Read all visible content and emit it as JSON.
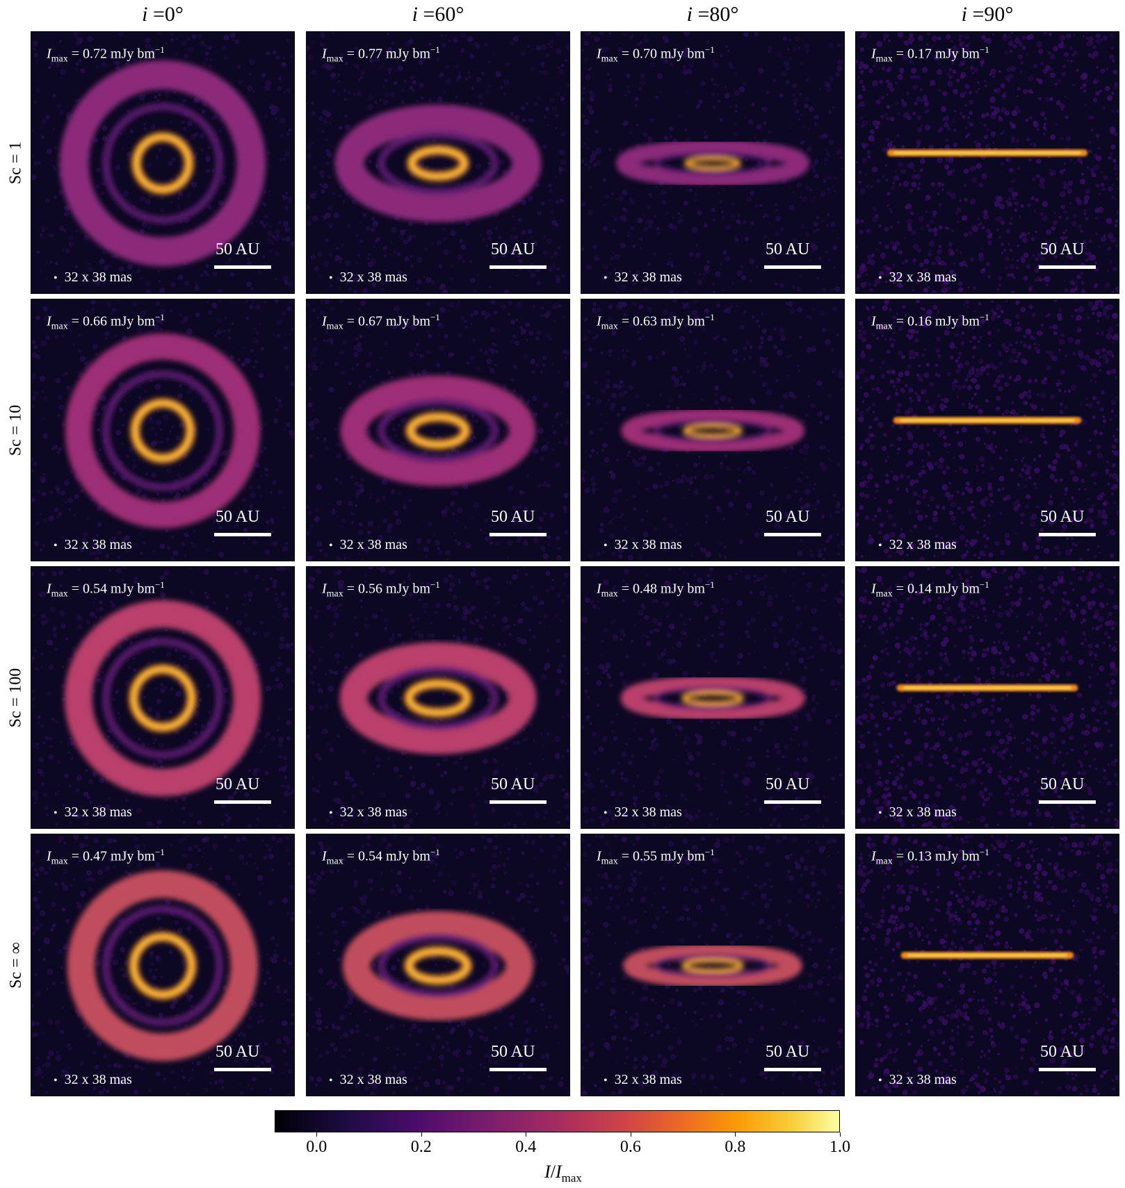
{
  "figure": {
    "columns": [
      {
        "var": "i",
        "label": " =0°"
      },
      {
        "var": "i",
        "label": " =60°"
      },
      {
        "var": "i",
        "label": " =80°"
      },
      {
        "var": "i",
        "label": " =90°"
      }
    ],
    "rows": [
      {
        "label": "Sc = 1"
      },
      {
        "label": "Sc = 10"
      },
      {
        "label": "Sc = 100"
      },
      {
        "label": "Sc = ∞"
      }
    ],
    "panels": [
      [
        {
          "imax": " = 0.72 mJy bm",
          "exp": "−1"
        },
        {
          "imax": " = 0.77 mJy bm",
          "exp": "−1"
        },
        {
          "imax": " = 0.70 mJy bm",
          "exp": "−1"
        },
        {
          "imax": " = 0.17 mJy bm",
          "exp": "−1"
        }
      ],
      [
        {
          "imax": " = 0.66 mJy bm",
          "exp": "−1"
        },
        {
          "imax": " = 0.67 mJy bm",
          "exp": "−1"
        },
        {
          "imax": " = 0.63 mJy bm",
          "exp": "−1"
        },
        {
          "imax": " = 0.16 mJy bm",
          "exp": "−1"
        }
      ],
      [
        {
          "imax": " = 0.54 mJy bm",
          "exp": "−1"
        },
        {
          "imax": " = 0.56 mJy bm",
          "exp": "−1"
        },
        {
          "imax": " = 0.48 mJy bm",
          "exp": "−1"
        },
        {
          "imax": " = 0.14 mJy bm",
          "exp": "−1"
        }
      ],
      [
        {
          "imax": " = 0.47 mJy bm",
          "exp": "−1"
        },
        {
          "imax": " = 0.54 mJy bm",
          "exp": "−1"
        },
        {
          "imax": " = 0.55 mJy bm",
          "exp": "−1"
        },
        {
          "imax": " = 0.13 mJy bm",
          "exp": "−1"
        }
      ]
    ],
    "imax_symbol": "I",
    "imax_sub": "max",
    "beam_label": "32 x 38 mas",
    "beam_dot": "•",
    "scalebar_label": "50 AU",
    "colorbar": {
      "ticks": [
        "0.0",
        "0.2",
        "0.4",
        "0.6",
        "0.8",
        "1.0"
      ],
      "tick_values": [
        0.0,
        0.2,
        0.4,
        0.6,
        0.8,
        1.0
      ],
      "range": [
        -0.08,
        1.0
      ],
      "label_num": "I",
      "label_slash": "/",
      "label_den": "I",
      "label_sub": "max",
      "colormap": "inferno"
    },
    "inclinations_deg": [
      0,
      60,
      80,
      90
    ]
  }
}
